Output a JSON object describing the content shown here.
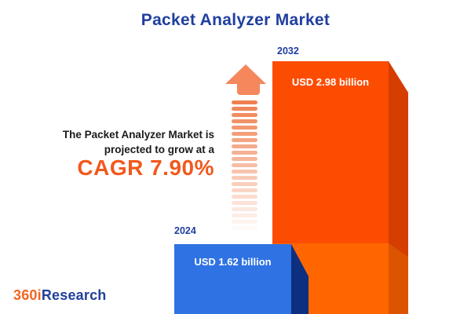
{
  "title": "Packet Analyzer Market",
  "description": {
    "line1": "The Packet Analyzer Market is",
    "line2": "projected to grow at a",
    "cagr": "CAGR 7.90%"
  },
  "bars": [
    {
      "year": "2024",
      "value_label": "USD 1.62 billion",
      "front_color": "#2f72e3",
      "side_color": "#0c2f80"
    },
    {
      "year": "2032",
      "value_label": "USD 2.98 billion",
      "front_color": "#fc4c02",
      "side_color": "#d63d00",
      "lower_front_color": "#ff6600",
      "lower_side_color": "#dc5400"
    }
  ],
  "logo": {
    "prefix": "360i",
    "suffix": "Research",
    "prefix_color": "#f26522",
    "suffix_color": "#21409a"
  },
  "colors": {
    "title_blue": "#1f3fa0",
    "accent_orange": "#f1591d",
    "arrow_salmon": "#f5875c",
    "body_text": "#1b1b1b",
    "background": "#ffffff"
  },
  "chart_data": {
    "type": "bar",
    "title": "Packet Analyzer Market",
    "categories": [
      "2024",
      "2032"
    ],
    "values": [
      1.62,
      2.98
    ],
    "unit": "USD billion",
    "value_labels": [
      "USD 1.62 billion",
      "USD 2.98 billion"
    ],
    "annotation": "The Packet Analyzer Market is projected to grow at a CAGR 7.90%",
    "cagr_percent": 7.9,
    "xlabel": "",
    "ylabel": "",
    "grid": false,
    "legend": false,
    "style": "3d-infographic-bars"
  }
}
